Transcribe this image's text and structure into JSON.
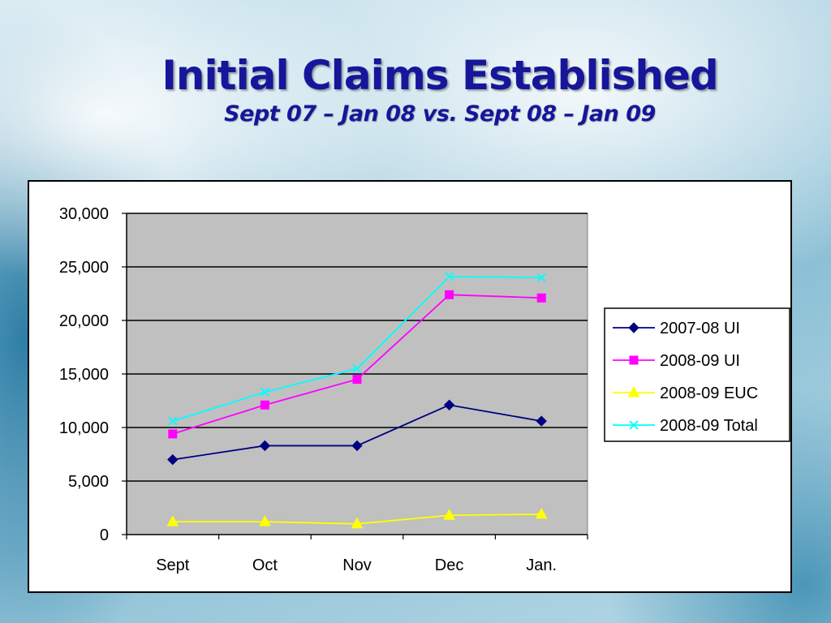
{
  "slide": {
    "title": "Initial Claims Established",
    "subtitle": "Sept 07 – Jan 08 vs. Sept 08 – Jan 09"
  },
  "colors": {
    "title": "#16169a",
    "plot_background": "#c0c0c0"
  },
  "chart_data": {
    "type": "line",
    "categories": [
      "Sept",
      "Oct",
      "Nov",
      "Dec",
      "Jan."
    ],
    "ylim": [
      0,
      30000
    ],
    "yticks": [
      "0",
      "5,000",
      "10,000",
      "15,000",
      "20,000",
      "25,000",
      "30,000"
    ],
    "grid": true,
    "legend_position": "right",
    "series": [
      {
        "name": "2007-08 UI",
        "values": [
          7000,
          8300,
          8300,
          12100,
          10600
        ],
        "color": "#000080",
        "marker": "diamond"
      },
      {
        "name": "2008-09 UI",
        "values": [
          9400,
          12100,
          14500,
          22400,
          22100
        ],
        "color": "#ff00ff",
        "marker": "square"
      },
      {
        "name": "2008-09 EUC",
        "values": [
          1200,
          1200,
          1000,
          1800,
          1900
        ],
        "color": "#ffff00",
        "marker": "triangle"
      },
      {
        "name": "2008-09 Total",
        "values": [
          10600,
          13300,
          15500,
          24100,
          24000
        ],
        "color": "#00ffff",
        "marker": "x"
      }
    ]
  }
}
